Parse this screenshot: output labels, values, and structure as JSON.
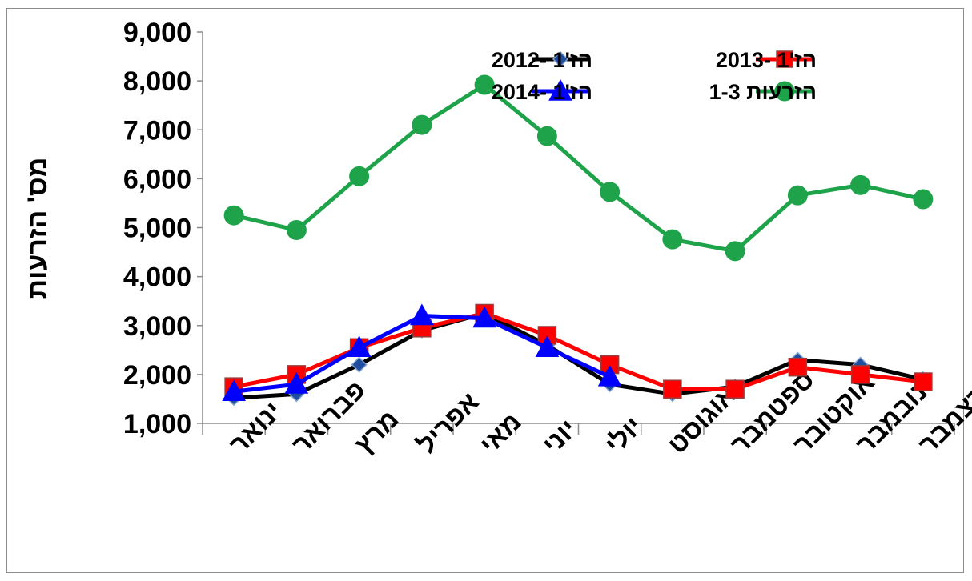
{
  "chart_data": {
    "type": "line",
    "ylabel": "מס' הזרעות",
    "xlabel": "",
    "title": "",
    "ylim": [
      1000,
      9000
    ],
    "ytick_step": 1000,
    "grid": false,
    "legend_position": "top-right",
    "categories": [
      "ינואר",
      "פברואר",
      "מרץ",
      "אפריל",
      "מאי",
      "יוני",
      "יולי",
      "אוגוסט",
      "ספטמבר",
      "אוקטובר",
      "נובמבר",
      "דצמבר"
    ],
    "series": [
      {
        "name": "הז'1 -2012",
        "color": "#000000",
        "marker": "diamond",
        "marker_fill": "#1f4e9e",
        "values": [
          1520,
          1600,
          2200,
          2900,
          3250,
          2600,
          1800,
          1600,
          1750,
          2300,
          2200,
          1900
        ]
      },
      {
        "name": "הז'1 -2013",
        "color": "#ff0000",
        "marker": "square",
        "marker_fill": "#ff0000",
        "values": [
          1750,
          2000,
          2550,
          2950,
          3250,
          2800,
          2200,
          1700,
          1700,
          2150,
          2000,
          1850
        ]
      },
      {
        "name": "הז'1 -2014",
        "color": "#0000ff",
        "marker": "triangle",
        "marker_fill": "#0000ff",
        "values": [
          1650,
          1800,
          2550,
          3200,
          3150,
          2550,
          1950,
          null,
          null,
          null,
          null,
          null
        ]
      },
      {
        "name": "הזרעות 1-3",
        "color": "#1fa34a",
        "marker": "circle",
        "marker_fill": "#1fa34a",
        "values": [
          5250,
          4950,
          6050,
          7100,
          7920,
          6870,
          5730,
          4760,
          4520,
          5660,
          5870,
          5580
        ]
      }
    ]
  }
}
